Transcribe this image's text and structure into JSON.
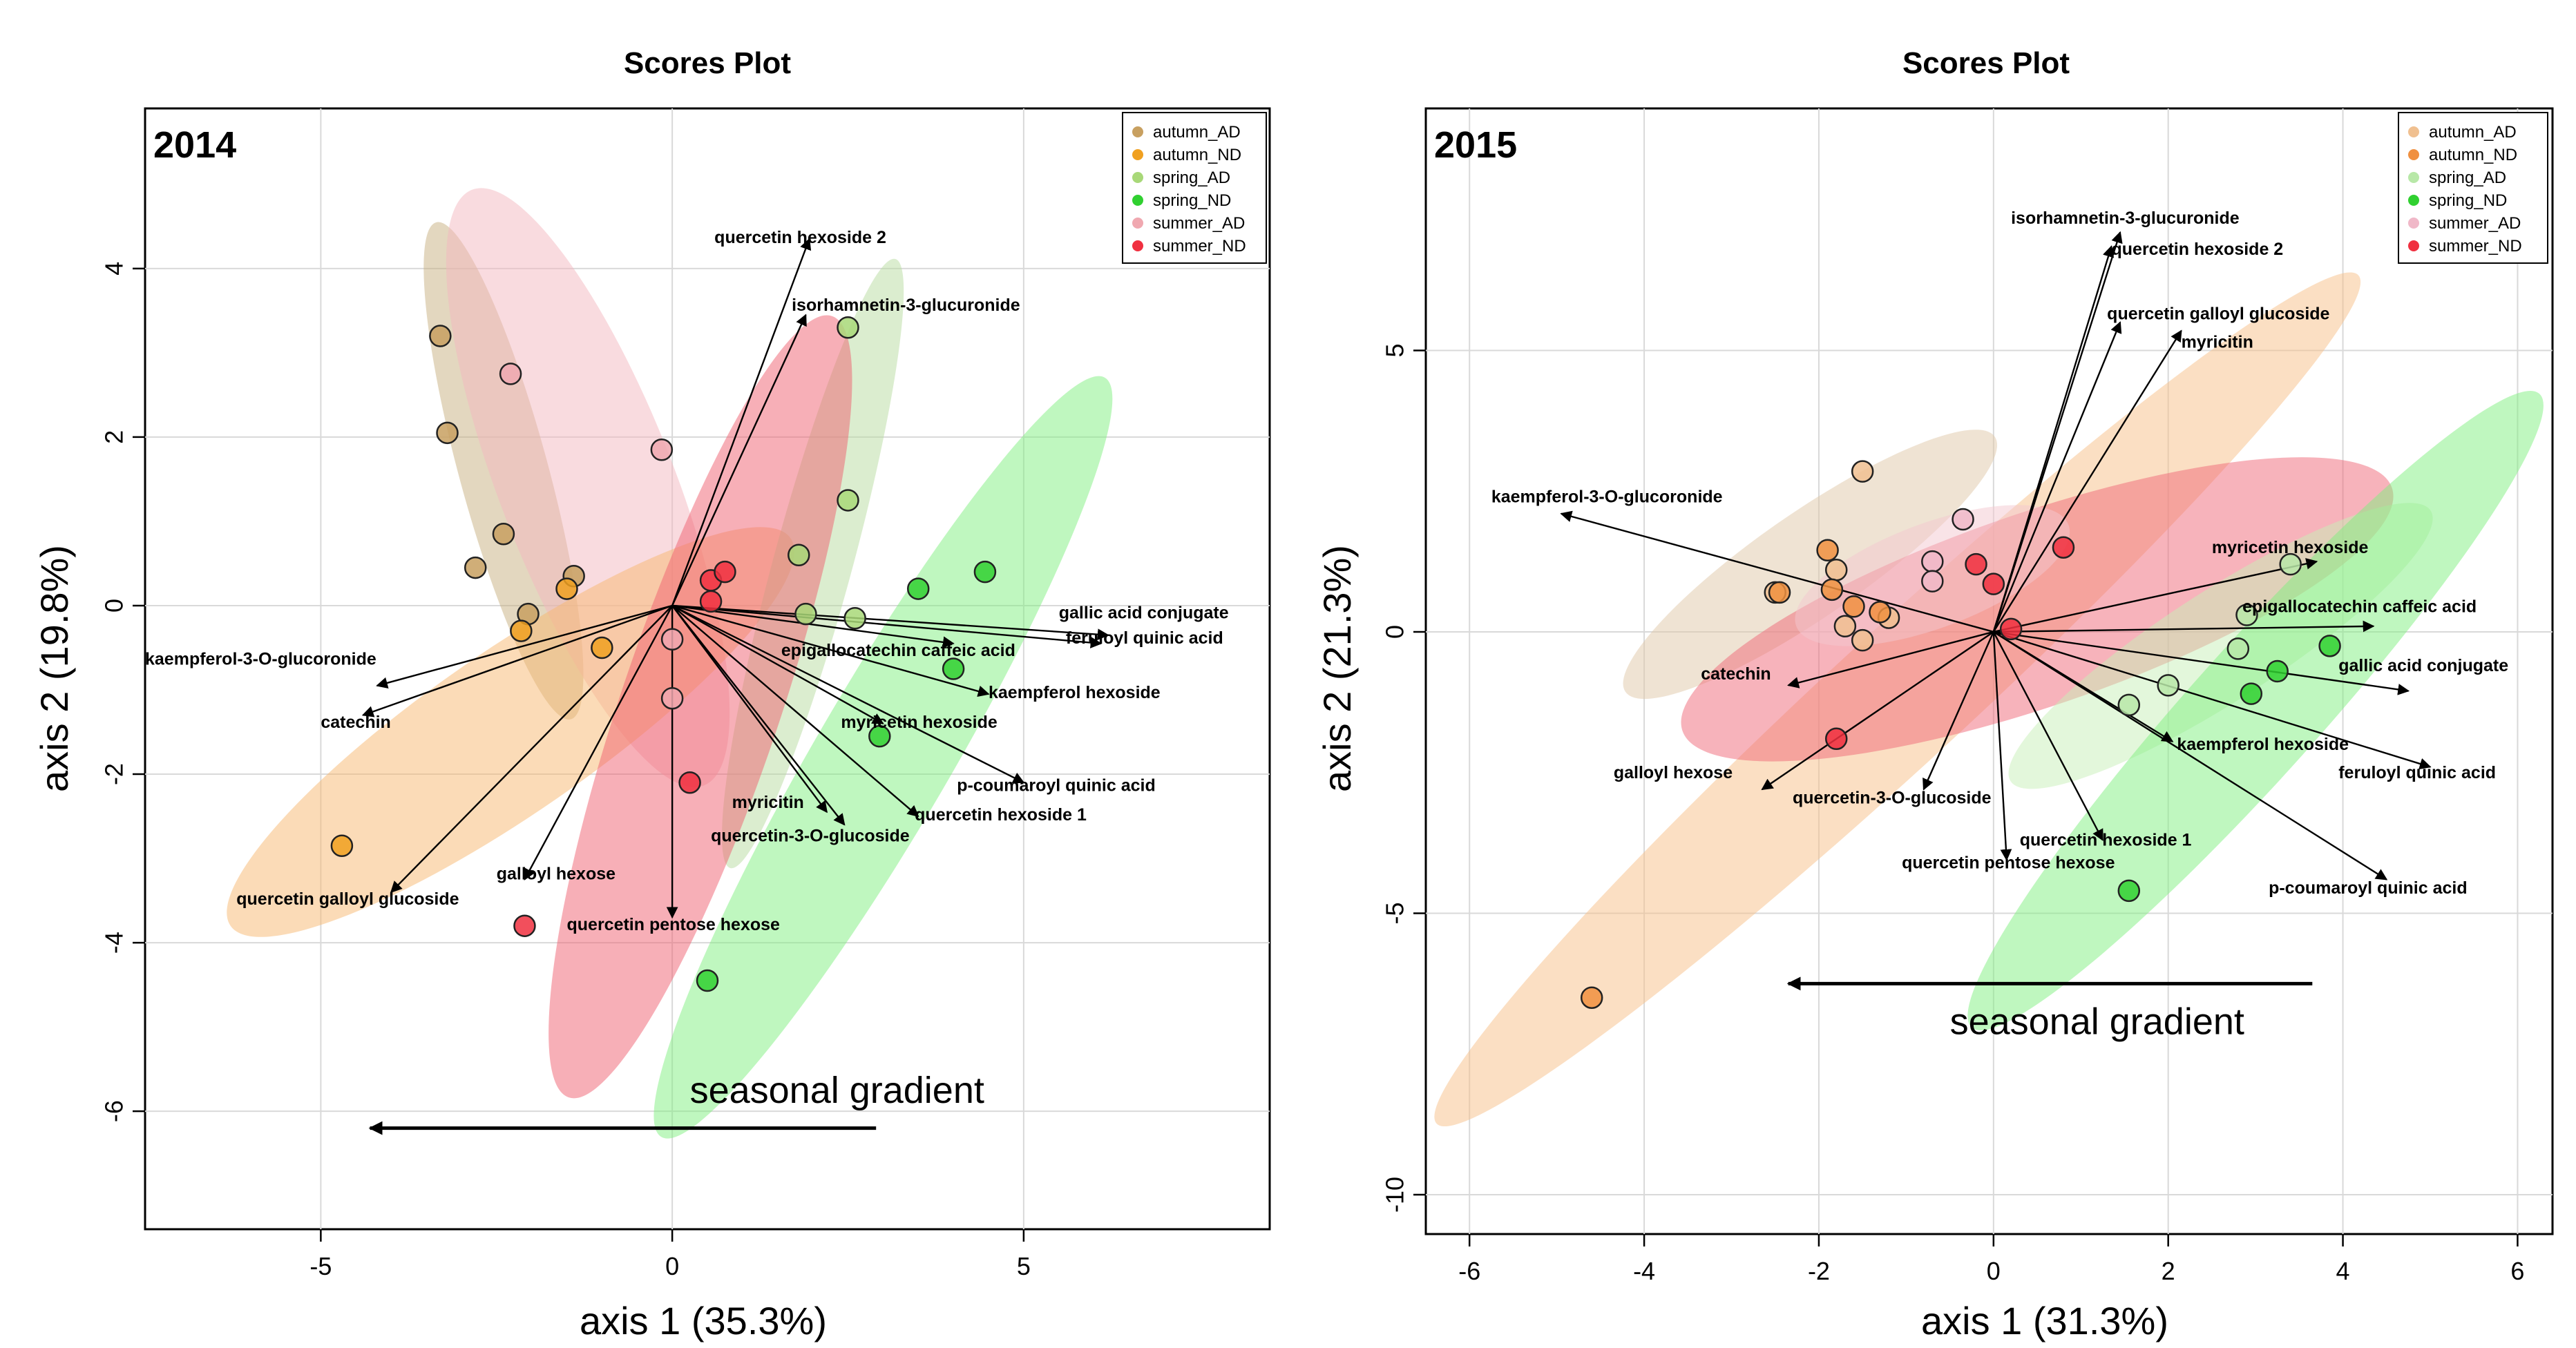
{
  "chart_data": [
    {
      "type": "scatter",
      "title": "Scores Plot",
      "panel_label": "2014",
      "xlabel": "axis 1 (35.3%)",
      "ylabel": "axis 2 (19.8%)",
      "xlim": [
        -7.5,
        8.5
      ],
      "ylim": [
        -7.4,
        5.9
      ],
      "xticks": [
        -5,
        0,
        5
      ],
      "yticks": [
        -6,
        -4,
        -2,
        0,
        2,
        4
      ],
      "xtick_labels": [
        "-5",
        "0",
        "5"
      ],
      "ytick_labels": [
        "-6",
        "-4",
        "-2",
        "0",
        "2",
        "4"
      ],
      "grid": true,
      "legend_position": "top-right",
      "legend": [
        {
          "label": "autumn_AD",
          "color": "#C8A060"
        },
        {
          "label": "autumn_ND",
          "color": "#F0A020"
        },
        {
          "label": "spring_AD",
          "color": "#A8D878"
        },
        {
          "label": "spring_ND",
          "color": "#30D030"
        },
        {
          "label": "summer_AD",
          "color": "#F0A8B0"
        },
        {
          "label": "summer_ND",
          "color": "#F03040"
        }
      ],
      "ellipses": [
        {
          "group": "autumn_AD",
          "color": "#C8B080",
          "center": [
            -2.4,
            1.6
          ],
          "rx": 3.1,
          "ry": 0.62,
          "angle_deg": -72
        },
        {
          "group": "summer_AD",
          "color": "#F4B8C0",
          "center": [
            -1.2,
            1.4
          ],
          "rx": 3.9,
          "ry": 1.2,
          "angle_deg": -65
        },
        {
          "group": "autumn_ND",
          "color": "#F8B870",
          "center": [
            -2.3,
            -1.5
          ],
          "rx": 4.6,
          "ry": 1.0,
          "angle_deg": 30
        },
        {
          "group": "spring_AD",
          "color": "#B8DCA0",
          "center": [
            2.0,
            0.5
          ],
          "rx": 3.8,
          "ry": 0.55,
          "angle_deg": 72
        },
        {
          "group": "spring_ND",
          "color": "#80F080",
          "center": [
            3.0,
            -1.8
          ],
          "rx": 5.5,
          "ry": 0.9,
          "angle_deg": 55
        },
        {
          "group": "summer_ND",
          "color": "#F06070",
          "center": [
            0.4,
            -1.2
          ],
          "rx": 5.0,
          "ry": 1.1,
          "angle_deg": 68
        }
      ],
      "points": [
        {
          "group": "autumn_AD",
          "x": -3.3,
          "y": 3.2
        },
        {
          "group": "autumn_AD",
          "x": -3.2,
          "y": 2.05
        },
        {
          "group": "autumn_AD",
          "x": -2.4,
          "y": 0.85
        },
        {
          "group": "autumn_AD",
          "x": -2.8,
          "y": 0.45
        },
        {
          "group": "autumn_AD",
          "x": -2.05,
          "y": -0.1
        },
        {
          "group": "autumn_AD",
          "x": -1.4,
          "y": 0.35
        },
        {
          "group": "autumn_ND",
          "x": -2.15,
          "y": -0.3
        },
        {
          "group": "autumn_ND",
          "x": -1.5,
          "y": 0.2
        },
        {
          "group": "autumn_ND",
          "x": -1.0,
          "y": -0.5
        },
        {
          "group": "autumn_ND",
          "x": -4.7,
          "y": -2.85
        },
        {
          "group": "summer_AD",
          "x": -2.3,
          "y": 2.75
        },
        {
          "group": "summer_AD",
          "x": -0.15,
          "y": 1.85
        },
        {
          "group": "summer_AD",
          "x": 0.0,
          "y": -0.4
        },
        {
          "group": "summer_AD",
          "x": 0.0,
          "y": -1.1
        },
        {
          "group": "summer_ND",
          "x": 0.55,
          "y": 0.3
        },
        {
          "group": "summer_ND",
          "x": 0.75,
          "y": 0.4
        },
        {
          "group": "summer_ND",
          "x": 0.55,
          "y": 0.05
        },
        {
          "group": "summer_ND",
          "x": 0.25,
          "y": -2.1
        },
        {
          "group": "summer_ND",
          "x": -2.1,
          "y": -3.8
        },
        {
          "group": "spring_AD",
          "x": 2.5,
          "y": 3.3
        },
        {
          "group": "spring_AD",
          "x": 2.5,
          "y": 1.25
        },
        {
          "group": "spring_AD",
          "x": 1.8,
          "y": 0.6
        },
        {
          "group": "spring_AD",
          "x": 1.9,
          "y": -0.1
        },
        {
          "group": "spring_AD",
          "x": 2.6,
          "y": -0.15
        },
        {
          "group": "spring_ND",
          "x": 3.5,
          "y": 0.2
        },
        {
          "group": "spring_ND",
          "x": 4.45,
          "y": 0.4
        },
        {
          "group": "spring_ND",
          "x": 4.0,
          "y": -0.75
        },
        {
          "group": "spring_ND",
          "x": 2.95,
          "y": -1.55
        },
        {
          "group": "spring_ND",
          "x": 0.5,
          "y": -4.45
        }
      ],
      "loadings": [
        {
          "label": "quercetin hexoside 2",
          "x": 1.95,
          "y": 4.35,
          "lx": 0.6,
          "ly": 4.3,
          "anchor": "start"
        },
        {
          "label": "isorhamnetin-3-glucuronide",
          "x": 1.9,
          "y": 3.45,
          "lx": 1.7,
          "ly": 3.5,
          "anchor": "start"
        },
        {
          "label": "gallic acid conjugate",
          "x": 6.2,
          "y": -0.35,
          "lx": 5.5,
          "ly": -0.15,
          "anchor": "start"
        },
        {
          "label": "feruloyl quinic acid",
          "x": 6.1,
          "y": -0.45,
          "lx": 5.6,
          "ly": -0.45,
          "anchor": "start"
        },
        {
          "label": "epigallocatechin  caffeic acid",
          "x": 4.0,
          "y": -0.45,
          "lx": 1.55,
          "ly": -0.6,
          "anchor": "start"
        },
        {
          "label": "kaempferol hexoside",
          "x": 4.5,
          "y": -1.05,
          "lx": 4.5,
          "ly": -1.1,
          "anchor": "start"
        },
        {
          "label": "myricetin hexoside",
          "x": 3.0,
          "y": -1.4,
          "lx": 2.4,
          "ly": -1.45,
          "anchor": "start"
        },
        {
          "label": "p-coumaroyl quinic acid",
          "x": 5.0,
          "y": -2.1,
          "lx": 4.05,
          "ly": -2.2,
          "anchor": "start"
        },
        {
          "label": "quercetin hexoside 1",
          "x": 3.5,
          "y": -2.5,
          "lx": 3.45,
          "ly": -2.55,
          "anchor": "start"
        },
        {
          "label": "myricitin",
          "x": 2.2,
          "y": -2.45,
          "lx": 0.85,
          "ly": -2.4,
          "anchor": "start"
        },
        {
          "label": "quercetin-3-O-glucoside",
          "x": 2.45,
          "y": -2.6,
          "lx": 0.55,
          "ly": -2.8,
          "anchor": "start"
        },
        {
          "label": "kaempferol-3-O-glucoronide",
          "x": -4.2,
          "y": -0.95,
          "lx": -7.5,
          "ly": -0.7,
          "anchor": "start"
        },
        {
          "label": "catechin",
          "x": -4.4,
          "y": -1.3,
          "lx": -5.0,
          "ly": -1.45,
          "anchor": "start"
        },
        {
          "label": "quercetin galloyl glucoside",
          "x": -4.0,
          "y": -3.4,
          "lx": -6.2,
          "ly": -3.55,
          "anchor": "start"
        },
        {
          "label": "galloyl hexose",
          "x": -2.1,
          "y": -3.25,
          "lx": -2.5,
          "ly": -3.25,
          "anchor": "start"
        },
        {
          "label": "quercetin pentose hexose",
          "x": 0.0,
          "y": -3.7,
          "lx": -1.5,
          "ly": -3.85,
          "anchor": "start"
        }
      ],
      "annotation": {
        "text": "seasonal gradient",
        "arrow_from": [
          2.9,
          -6.2
        ],
        "arrow_to": [
          -4.3,
          -6.2
        ],
        "text_x": 0.25,
        "text_y": -5.9
      }
    },
    {
      "type": "scatter",
      "title": "Scores Plot",
      "panel_label": "2015",
      "xlabel": "axis 1 (31.3%)",
      "ylabel": "axis 2 (21.3%)",
      "xlim": [
        -6.5,
        6.4
      ],
      "ylim": [
        -10.7,
        9.3
      ],
      "xticks": [
        -6,
        -4,
        -2,
        0,
        2,
        4,
        6
      ],
      "yticks": [
        -10,
        -5,
        0,
        5
      ],
      "xtick_labels": [
        "-6",
        "-4",
        "-2",
        "0",
        "2",
        "4",
        "6"
      ],
      "ytick_labels": [
        "-10",
        "-5",
        "0",
        "5"
      ],
      "grid": true,
      "legend_position": "top-right",
      "legend": [
        {
          "label": "autumn_AD",
          "color": "#F0C090"
        },
        {
          "label": "autumn_ND",
          "color": "#F09040"
        },
        {
          "label": "spring_AD",
          "color": "#B8E8A8"
        },
        {
          "label": "spring_ND",
          "color": "#30D030"
        },
        {
          "label": "summer_AD",
          "color": "#F0B8C8"
        },
        {
          "label": "summer_ND",
          "color": "#F03040"
        }
      ],
      "ellipses": [
        {
          "group": "autumn_ND",
          "color": "#F8C088",
          "center": [
            -1.1,
            -1.2
          ],
          "rx": 9.2,
          "ry": 0.85,
          "angle_deg": 55
        },
        {
          "group": "autumn_AD",
          "color": "#E0C8A8",
          "center": [
            -2.1,
            1.2
          ],
          "rx": 3.1,
          "ry": 0.7,
          "angle_deg": 47
        },
        {
          "group": "summer_ND",
          "color": "#F06878",
          "center": [
            0.5,
            0.4
          ],
          "rx": 4.6,
          "ry": 1.5,
          "angle_deg": 28
        },
        {
          "group": "summer_AD",
          "color": "#F4C8D0",
          "center": [
            -0.7,
            1.0
          ],
          "rx": 1.8,
          "ry": 0.8,
          "angle_deg": 30
        },
        {
          "group": "spring_AD",
          "color": "#C8F0B8",
          "center": [
            2.6,
            -0.25
          ],
          "rx": 3.4,
          "ry": 0.75,
          "angle_deg": 45
        },
        {
          "group": "spring_ND",
          "color": "#80F080",
          "center": [
            3.0,
            -1.4
          ],
          "rx": 6.5,
          "ry": 0.8,
          "angle_deg": 60
        }
      ],
      "points": [
        {
          "group": "autumn_AD",
          "x": -1.5,
          "y": 2.85
        },
        {
          "group": "autumn_AD",
          "x": -2.5,
          "y": 0.7
        },
        {
          "group": "autumn_AD",
          "x": -1.8,
          "y": 1.1
        },
        {
          "group": "autumn_AD",
          "x": -1.7,
          "y": 0.1
        },
        {
          "group": "autumn_AD",
          "x": -1.2,
          "y": 0.25
        },
        {
          "group": "autumn_AD",
          "x": -1.5,
          "y": -0.15
        },
        {
          "group": "autumn_ND",
          "x": -2.45,
          "y": 0.7
        },
        {
          "group": "autumn_ND",
          "x": -1.9,
          "y": 1.45
        },
        {
          "group": "autumn_ND",
          "x": -1.85,
          "y": 0.75
        },
        {
          "group": "autumn_ND",
          "x": -1.6,
          "y": 0.45
        },
        {
          "group": "autumn_ND",
          "x": -1.3,
          "y": 0.35
        },
        {
          "group": "autumn_ND",
          "x": -4.6,
          "y": -6.5
        },
        {
          "group": "summer_AD",
          "x": -0.35,
          "y": 2.0
        },
        {
          "group": "summer_AD",
          "x": -0.7,
          "y": 1.25
        },
        {
          "group": "summer_AD",
          "x": -0.7,
          "y": 0.9
        },
        {
          "group": "summer_ND",
          "x": -0.2,
          "y": 1.2
        },
        {
          "group": "summer_ND",
          "x": 0.0,
          "y": 0.85
        },
        {
          "group": "summer_ND",
          "x": 0.8,
          "y": 1.5
        },
        {
          "group": "summer_ND",
          "x": 0.2,
          "y": 0.05
        },
        {
          "group": "summer_ND",
          "x": -1.8,
          "y": -1.9
        },
        {
          "group": "spring_AD",
          "x": 3.4,
          "y": 1.2
        },
        {
          "group": "spring_AD",
          "x": 2.9,
          "y": 0.3
        },
        {
          "group": "spring_AD",
          "x": 2.8,
          "y": -0.3
        },
        {
          "group": "spring_AD",
          "x": 2.0,
          "y": -0.95
        },
        {
          "group": "spring_AD",
          "x": 1.55,
          "y": -1.3
        },
        {
          "group": "spring_ND",
          "x": 3.85,
          "y": -0.25
        },
        {
          "group": "spring_ND",
          "x": 3.25,
          "y": -0.7
        },
        {
          "group": "spring_ND",
          "x": 2.95,
          "y": -1.1
        },
        {
          "group": "spring_ND",
          "x": 1.55,
          "y": -4.6
        }
      ],
      "loadings": [
        {
          "label": "isorhamnetin-3-glucuronide",
          "x": 1.45,
          "y": 7.1,
          "lx": 0.2,
          "ly": 7.25,
          "anchor": "start"
        },
        {
          "label": "quercetin hexoside 2",
          "x": 1.35,
          "y": 6.85,
          "lx": 1.35,
          "ly": 6.7,
          "anchor": "start"
        },
        {
          "label": "quercetin galloyl glucoside",
          "x": 1.45,
          "y": 5.5,
          "lx": 1.3,
          "ly": 5.55,
          "anchor": "start"
        },
        {
          "label": "myricitin",
          "x": 2.15,
          "y": 5.35,
          "lx": 2.15,
          "ly": 5.05,
          "anchor": "start"
        },
        {
          "label": "kaempferol-3-O-glucoronide",
          "x": -4.95,
          "y": 2.1,
          "lx": -5.75,
          "ly": 2.3,
          "anchor": "start"
        },
        {
          "label": "myricetin hexoside",
          "x": 3.7,
          "y": 1.25,
          "lx": 2.5,
          "ly": 1.4,
          "anchor": "start"
        },
        {
          "label": "epigallocatechin  caffeic acid",
          "x": 4.35,
          "y": 0.1,
          "lx": 2.85,
          "ly": 0.35,
          "anchor": "start"
        },
        {
          "label": "gallic acid conjugate",
          "x": 4.75,
          "y": -1.05,
          "lx": 3.95,
          "ly": -0.7,
          "anchor": "start"
        },
        {
          "label": "kaempferol hexoside",
          "x": 2.05,
          "y": -1.95,
          "lx": 2.1,
          "ly": -2.1,
          "anchor": "start"
        },
        {
          "label": "feruloyl quinic acid",
          "x": 5.0,
          "y": -2.4,
          "lx": 3.95,
          "ly": -2.6,
          "anchor": "start"
        },
        {
          "label": "p-coumaroyl quinic acid",
          "x": 4.5,
          "y": -4.4,
          "lx": 3.15,
          "ly": -4.65,
          "anchor": "start"
        },
        {
          "label": "catechin",
          "x": -2.35,
          "y": -0.95,
          "lx": -3.35,
          "ly": -0.85,
          "anchor": "start"
        },
        {
          "label": "galloyl hexose",
          "x": -2.65,
          "y": -2.8,
          "lx": -4.35,
          "ly": -2.6,
          "anchor": "start"
        },
        {
          "label": "quercetin-3-O-glucoside",
          "x": -0.8,
          "y": -2.8,
          "lx": -2.3,
          "ly": -3.05,
          "anchor": "start"
        },
        {
          "label": "quercetin hexoside 1",
          "x": 1.25,
          "y": -3.7,
          "lx": 0.3,
          "ly": -3.8,
          "anchor": "start"
        },
        {
          "label": "quercetin pentose hexose",
          "x": 0.15,
          "y": -4.05,
          "lx": -1.05,
          "ly": -4.2,
          "anchor": "start"
        }
      ],
      "annotation": {
        "text": "seasonal gradient",
        "arrow_from": [
          3.65,
          -6.25
        ],
        "arrow_to": [
          -2.35,
          -6.25
        ],
        "text_x": -0.5,
        "text_y": -7.15
      }
    }
  ]
}
